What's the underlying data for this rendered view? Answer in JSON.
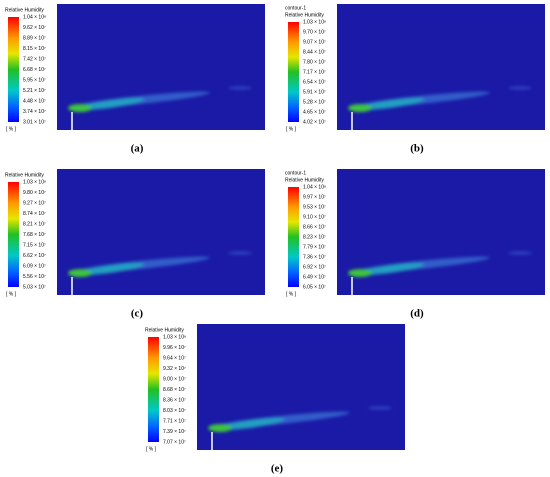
{
  "panels": [
    {
      "legend_title": "Relative Humidity",
      "levels": [
        "1.04 × 10⁸",
        "9.62 × 10⁷",
        "8.89 × 10⁷",
        "8.15 × 10⁷",
        "7.42 × 10⁷",
        "6.68 × 10⁷",
        "5.95 × 10⁷",
        "5.21 × 10⁷",
        "4.48 × 10⁷",
        "3.74 × 10⁷",
        "3.01 × 10⁷"
      ],
      "unit": "[ % ]",
      "caption": "(a)"
    },
    {
      "legend_header": "contour-1",
      "legend_title": "Relative Humidity",
      "levels": [
        "1.03 × 10⁸",
        "9.70 × 10⁷",
        "9.07 × 10⁷",
        "8.44 × 10⁷",
        "7.80 × 10⁷",
        "7.17 × 10⁷",
        "6.54 × 10⁷",
        "5.91 × 10⁷",
        "5.28 × 10⁷",
        "4.65 × 10⁷",
        "4.02 × 10⁷"
      ],
      "unit": "[ % ]",
      "caption": "(b)"
    },
    {
      "legend_title": "Relative Humidity",
      "levels": [
        "1.03 × 10⁸",
        "9.80 × 10⁷",
        "9.27 × 10⁷",
        "8.74 × 10⁷",
        "8.21 × 10⁷",
        "7.68 × 10⁷",
        "7.15 × 10⁷",
        "6.62 × 10⁷",
        "6.09 × 10⁷",
        "5.56 × 10⁷",
        "5.03 × 10⁷"
      ],
      "unit": "[ % ]",
      "caption": "(c)"
    },
    {
      "legend_header": "contour-1",
      "legend_title": "Relative Humidity",
      "levels": [
        "1.04 × 10⁸",
        "9.97 × 10⁷",
        "9.53 × 10⁷",
        "9.10 × 10⁷",
        "8.66 × 10⁷",
        "8.23 × 10⁷",
        "7.79 × 10⁷",
        "7.36 × 10⁷",
        "6.92 × 10⁷",
        "6.49 × 10⁷",
        "6.05 × 10⁷"
      ],
      "unit": "[ % ]",
      "caption": "(d)"
    },
    {
      "legend_title": "Relative Humidity",
      "levels": [
        "1.03 × 10⁸",
        "9.96 × 10⁷",
        "9.64 × 10⁷",
        "9.32 × 10⁷",
        "9.00 × 10⁷",
        "8.68 × 10⁷",
        "8.36 × 10⁷",
        "8.03 × 10⁷",
        "7.71 × 10⁷",
        "7.39 × 10⁷",
        "7.07 × 10⁷"
      ],
      "unit": "[ % ]",
      "caption": "(e)"
    }
  ]
}
